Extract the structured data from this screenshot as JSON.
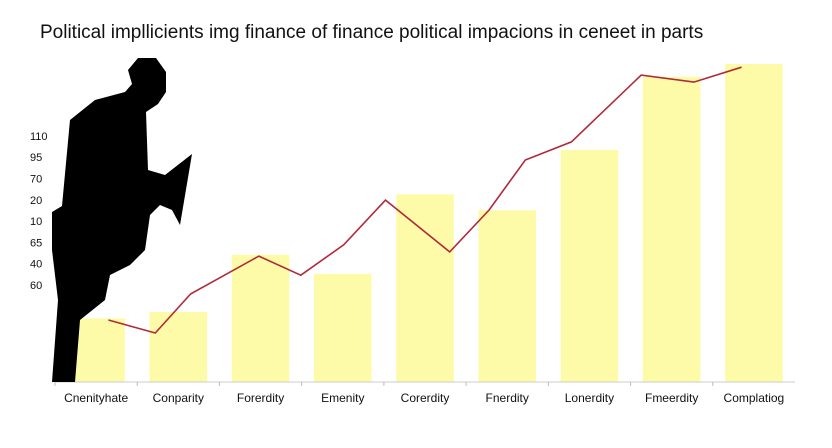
{
  "chart_data": {
    "type": "bar",
    "title": "Political impllicients img finance of finance political impacions in ceneet in parts",
    "categories": [
      "Cnenityhate",
      "Conparity",
      "Forerdity",
      "Emenity",
      "Corerdity",
      "Fnerdity",
      "Lonerdity",
      "Fmeerdity",
      "Complatiog"
    ],
    "values": [
      20,
      22,
      40,
      34,
      59,
      54,
      73,
      96,
      100
    ],
    "color": "#fdfba8",
    "ylim": [
      0,
      100
    ],
    "y_labels": [
      "110",
      "95",
      "70",
      "20",
      "10",
      "65",
      "40",
      "60"
    ],
    "line": {
      "color": "#b02a3a",
      "x": [
        0.15,
        0.72,
        1.15,
        1.98,
        2.49,
        3.01,
        3.52,
        4.3,
        4.78,
        5.22,
        5.78,
        6.63,
        7.27,
        7.85
      ],
      "values": [
        19.5,
        15.4,
        27.7,
        39.6,
        33.6,
        43.1,
        57.2,
        40.9,
        54.1,
        69.8,
        75.5,
        96.5,
        94.3,
        99
      ]
    }
  }
}
